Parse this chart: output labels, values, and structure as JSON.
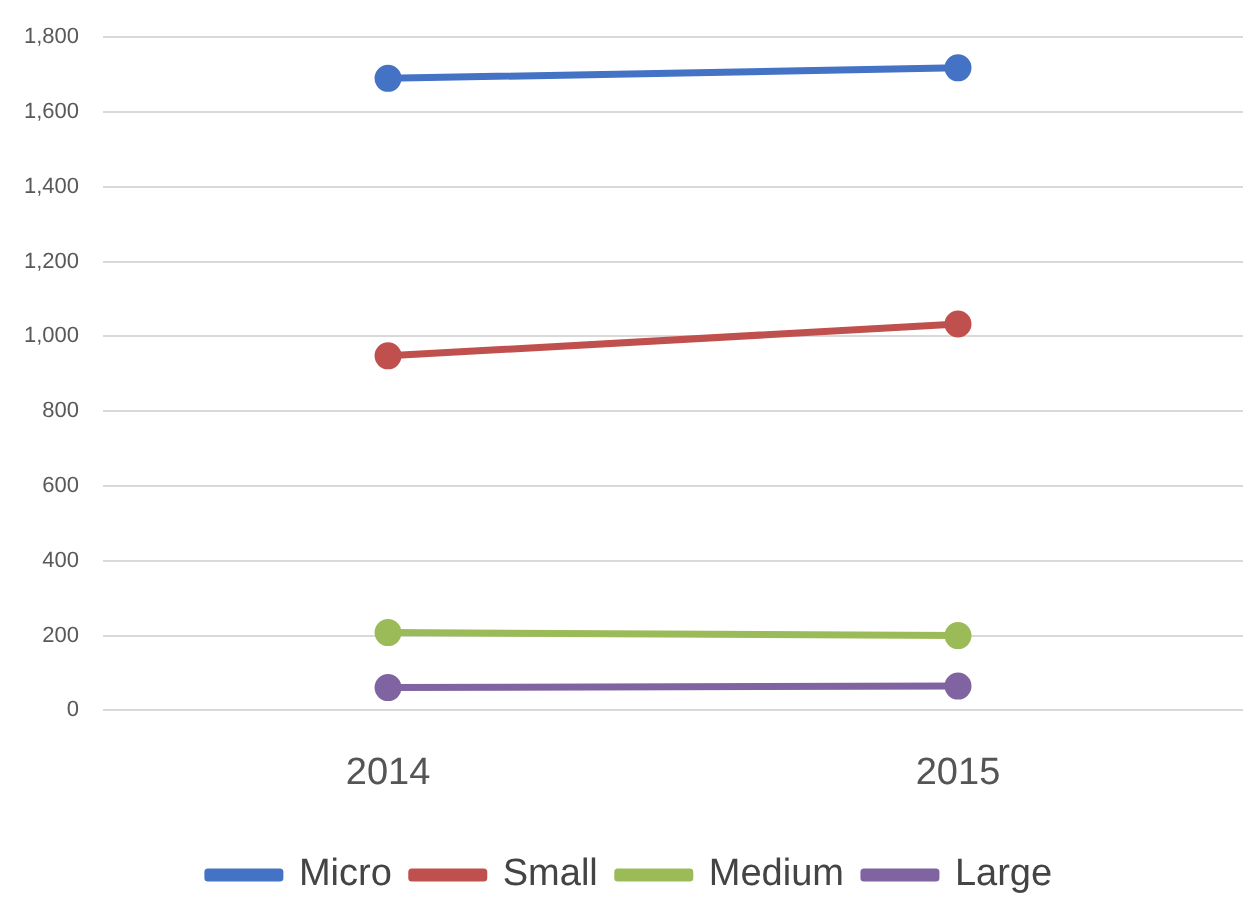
{
  "chart_data": {
    "type": "line",
    "categories": [
      "2014",
      "2015"
    ],
    "series": [
      {
        "name": "Micro",
        "color": "#4472c4",
        "values": [
          1690,
          1718
        ]
      },
      {
        "name": "Small",
        "color": "#c0504d",
        "values": [
          948,
          1033
        ]
      },
      {
        "name": "Medium",
        "color": "#9bbb59",
        "values": [
          208,
          200
        ]
      },
      {
        "name": "Large",
        "color": "#8064a2",
        "values": [
          61,
          65
        ]
      }
    ],
    "ylim": [
      0,
      1800
    ],
    "yticks": [
      {
        "value": 0,
        "label": "0"
      },
      {
        "value": 200,
        "label": "200"
      },
      {
        "value": 400,
        "label": "400"
      },
      {
        "value": 600,
        "label": "600"
      },
      {
        "value": 800,
        "label": "800"
      },
      {
        "value": 1000,
        "label": "1,000"
      },
      {
        "value": 1200,
        "label": "1,200"
      },
      {
        "value": 1400,
        "label": "1,400"
      },
      {
        "value": 1600,
        "label": "1,600"
      },
      {
        "value": 1800,
        "label": "1,800"
      }
    ],
    "grid": "y",
    "legend": "bottom",
    "marker": "circle",
    "line_style": "solid"
  }
}
